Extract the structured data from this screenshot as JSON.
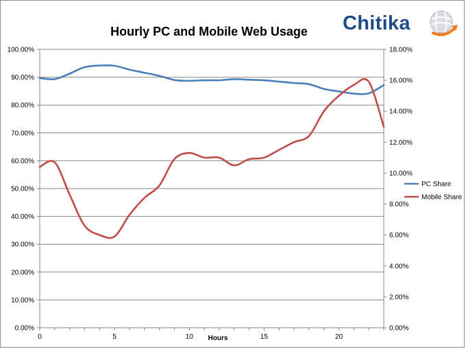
{
  "logo": {
    "text": "Chitika",
    "accent": "#f07c1a",
    "brand": "#1d4b8c"
  },
  "chart_data": {
    "type": "line",
    "title": "Hourly PC and Mobile Web Usage",
    "xlabel": "Hours",
    "ylabel": "",
    "y2label": "",
    "x": [
      0,
      1,
      2,
      3,
      4,
      5,
      6,
      7,
      8,
      9,
      10,
      11,
      12,
      13,
      14,
      15,
      16,
      17,
      18,
      19,
      20,
      21,
      22,
      23
    ],
    "xlim": [
      0,
      23
    ],
    "xticks": [
      "0",
      "5",
      "10",
      "15",
      "20"
    ],
    "xtick_values": [
      0,
      5,
      10,
      15,
      20
    ],
    "ylim": [
      0,
      100
    ],
    "yticks": [
      "0.00%",
      "10.00%",
      "20.00%",
      "30.00%",
      "40.00%",
      "50.00%",
      "60.00%",
      "70.00%",
      "80.00%",
      "90.00%",
      "100.00%"
    ],
    "y2lim": [
      0,
      18
    ],
    "y2ticks": [
      "0.00%",
      "2.00%",
      "4.00%",
      "6.00%",
      "8.00%",
      "10.00%",
      "12.00%",
      "14.00%",
      "16.00%",
      "18.00%"
    ],
    "grid": true,
    "legend_position": "right",
    "series": [
      {
        "name": "PC Share",
        "axis": "left",
        "color": "#4a7ebb",
        "values": [
          89.7,
          89.3,
          91.3,
          93.6,
          94.2,
          94.1,
          92.7,
          91.6,
          90.5,
          89.0,
          88.7,
          88.9,
          88.9,
          89.3,
          89.1,
          88.9,
          88.4,
          87.9,
          87.5,
          85.8,
          84.9,
          84.1,
          84.2,
          87.2
        ]
      },
      {
        "name": "Mobile Share",
        "axis": "right",
        "color": "#be4b48",
        "values": [
          10.4,
          10.7,
          8.6,
          6.6,
          6.0,
          5.9,
          7.3,
          8.4,
          9.2,
          10.9,
          11.3,
          11.0,
          11.0,
          10.5,
          10.9,
          11.0,
          11.5,
          12.0,
          12.4,
          14.0,
          15.0,
          15.7,
          15.9,
          13.0
        ]
      }
    ]
  }
}
